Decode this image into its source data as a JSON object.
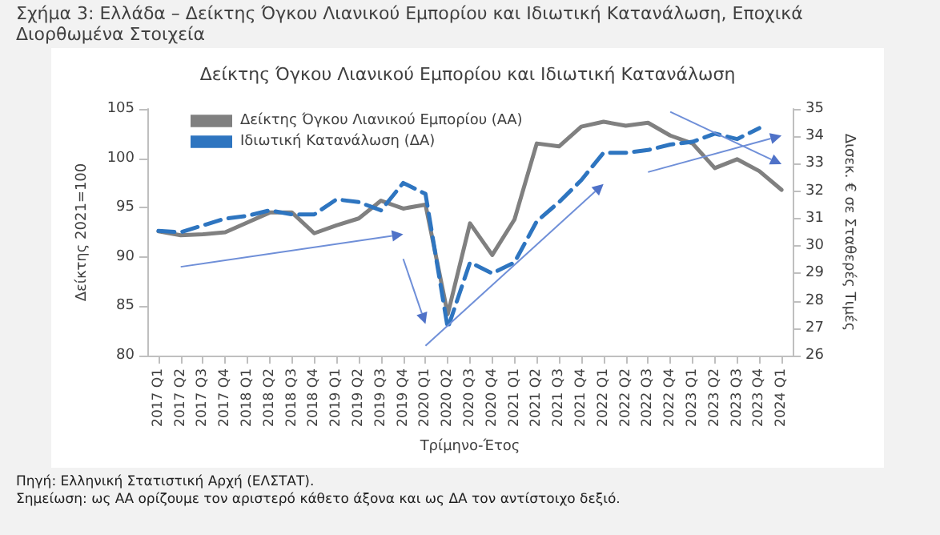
{
  "chart_data": {
    "type": "line",
    "title": "Σχήμα 3: Ελλάδα – Δείκτης Όγκου Λιανικού Εμπορίου και Ιδιωτική Κατανάλωση, Εποχικά Διορθωμένα Στοιχεία",
    "subtitle": "Δείκτης Όγκου Λιανικού Εμπορίου και Ιδιωτική Κατανάλωση",
    "xlabel": "Τρίμηνο-Έτος",
    "ylabel": "Δείκτης 2021=100",
    "y2label": "Δισεκ. € σε Σταθερές Τιμές",
    "annotations": [
      "Πηγή: Ελληνική Στατιστική Αρχή (ΕΛΣΤΑΤ).",
      "Σημείωση: ως ΑΑ ορίζουμε τον αριστερό κάθετο άξονα και ως ΔΑ τον αντίστοιχο δεξιό."
    ],
    "categories": [
      "2017 Q1",
      "2017 Q2",
      "2017 Q3",
      "2017 Q4",
      "2018 Q1",
      "2018 Q2",
      "2018 Q3",
      "2018 Q4",
      "2019 Q1",
      "2019 Q2",
      "2019 Q3",
      "2019 Q4",
      "2020 Q1",
      "2020 Q2",
      "2020 Q3",
      "2020 Q4",
      "2021 Q1",
      "2021 Q2",
      "2021 Q3",
      "2021 Q4",
      "2022 Q1",
      "2022 Q2",
      "2022 Q3",
      "2022 Q4",
      "2023 Q1",
      "2023 Q2",
      "2023 Q3",
      "2023 Q4",
      "2024 Q1"
    ],
    "series": [
      {
        "name": "Δείκτης Όγκου Λιανικού Εμπορίου (ΑΑ)",
        "color": "#808080",
        "line_style": "solid",
        "values": [
          92.6,
          92.2,
          92.3,
          92.5,
          93.5,
          94.5,
          94.5,
          92.4,
          93.2,
          93.9,
          95.7,
          94.9,
          95.3,
          84.2,
          93.4,
          90.2,
          93.8,
          101.5,
          101.2,
          103.2,
          103.7,
          103.3,
          103.6,
          102.3,
          101.5,
          99.0,
          99.9,
          98.7,
          96.8
        ]
      },
      {
        "name": "Ιδιωτική Κατανάλωση (ΔΑ)",
        "color": "#2e75c0",
        "line_style": "dashed",
        "axis": "y2",
        "values": [
          30.55,
          30.5,
          30.75,
          31.0,
          31.1,
          31.3,
          31.15,
          31.15,
          31.7,
          31.6,
          31.3,
          32.3,
          31.9,
          27.0,
          29.4,
          29.0,
          29.4,
          30.9,
          31.6,
          32.4,
          33.4,
          33.4,
          33.5,
          33.7,
          33.8,
          34.1,
          33.9,
          34.3,
          null
        ]
      }
    ],
    "ylim": [
      80,
      105
    ],
    "yticks": [
      80,
      85,
      90,
      95,
      100,
      105
    ],
    "y2lim": [
      26,
      35
    ],
    "y2ticks": [
      26,
      27,
      28,
      29,
      30,
      31,
      32,
      33,
      34,
      35
    ],
    "grid": false,
    "legend": "top left",
    "marker": "none"
  }
}
